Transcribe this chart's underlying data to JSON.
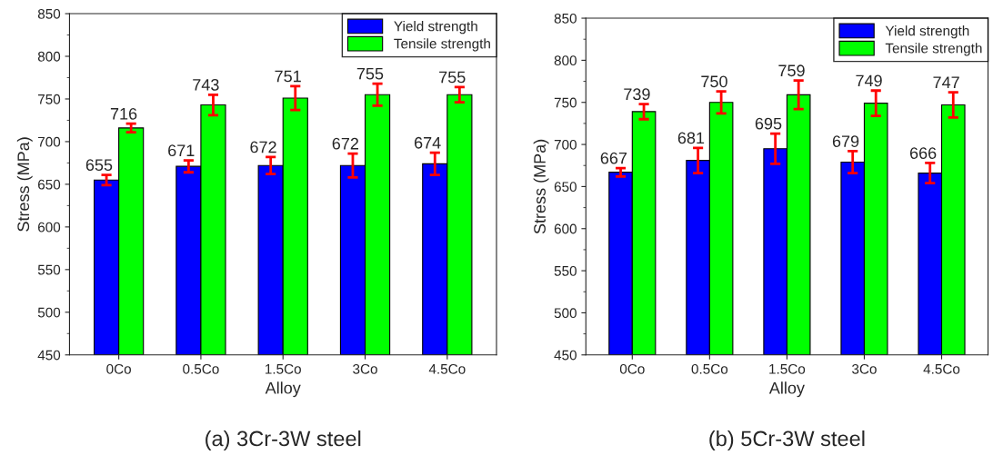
{
  "chart_data": [
    {
      "type": "bar",
      "title": "(a) 3Cr-3W steel",
      "xlabel": "Alloy",
      "ylabel": "Stress (MPa)",
      "categories": [
        "0Co",
        "0.5Co",
        "1.5Co",
        "3Co",
        "4.5Co"
      ],
      "series": [
        {
          "name": "Yield strength",
          "color": "#0000ff",
          "values": [
            655,
            671,
            672,
            672,
            674
          ],
          "errors": [
            6,
            7,
            10,
            14,
            13
          ]
        },
        {
          "name": "Tensile strength",
          "color": "#00ff00",
          "values": [
            716,
            743,
            751,
            755,
            755
          ],
          "errors": [
            5,
            12,
            14,
            13,
            9
          ]
        }
      ],
      "ylim": [
        450,
        850
      ],
      "yticks": [
        450,
        500,
        550,
        600,
        650,
        700,
        750,
        800,
        850
      ],
      "data_labels": true,
      "legend": "top right",
      "grid": false
    },
    {
      "type": "bar",
      "title": "(b) 5Cr-3W steel",
      "xlabel": "Alloy",
      "ylabel": "Stress (MPa)",
      "categories": [
        "0Co",
        "0.5Co",
        "1.5Co",
        "3Co",
        "4.5Co"
      ],
      "series": [
        {
          "name": "Yield strength",
          "color": "#0000ff",
          "values": [
            667,
            681,
            695,
            679,
            666
          ],
          "errors": [
            5,
            15,
            18,
            13,
            12
          ]
        },
        {
          "name": "Tensile strength",
          "color": "#00ff00",
          "values": [
            739,
            750,
            759,
            749,
            747
          ],
          "errors": [
            9,
            13,
            17,
            15,
            15
          ]
        }
      ],
      "ylim": [
        450,
        850
      ],
      "yticks": [
        450,
        500,
        550,
        600,
        650,
        700,
        750,
        800,
        850
      ],
      "data_labels": true,
      "legend": "top right",
      "grid": false
    }
  ]
}
